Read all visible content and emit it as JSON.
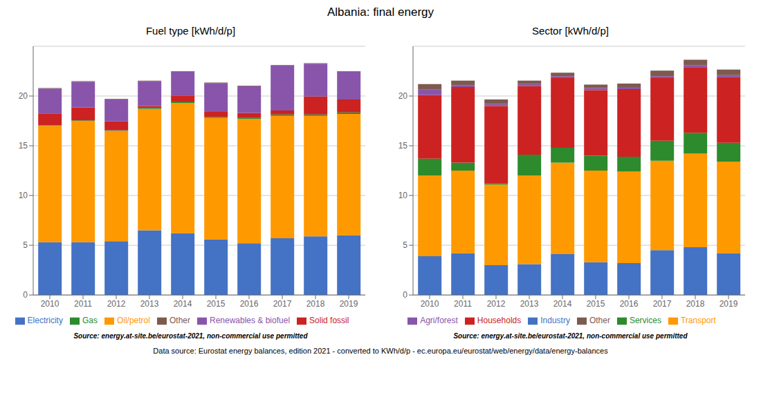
{
  "title": "Albania: final energy",
  "annotations": [
    "Data source: Eurostat energy balances, edition 2021 - converted to KWh/d/p - ec.europa.eu/eurostat/web/energy/data/energy-balances"
  ],
  "chart_data": [
    {
      "type": "bar",
      "stacked": true,
      "title": "Fuel type [kWh/d/p]",
      "categories": [
        "2010",
        "2011",
        "2012",
        "2013",
        "2014",
        "2015",
        "2016",
        "2017",
        "2018",
        "2019"
      ],
      "series": [
        {
          "name": "Electricity",
          "color": "#4472c4",
          "values": [
            5.3,
            5.3,
            5.4,
            6.5,
            6.2,
            5.6,
            5.2,
            5.7,
            5.9,
            6.0
          ]
        },
        {
          "name": "Oil/petrol",
          "color": "#ff9900",
          "values": [
            11.7,
            12.2,
            11.1,
            12.2,
            13.1,
            12.2,
            12.5,
            12.3,
            12.1,
            12.2
          ]
        },
        {
          "name": "Gas",
          "color": "#2d8a2d",
          "values": [
            0.05,
            0.05,
            0.05,
            0.1,
            0.15,
            0.1,
            0.1,
            0.15,
            0.15,
            0.15
          ]
        },
        {
          "name": "Solid fossil",
          "color": "#cc2222",
          "values": [
            1.2,
            1.3,
            0.9,
            0.2,
            0.6,
            0.5,
            0.5,
            0.4,
            1.8,
            1.3
          ]
        },
        {
          "name": "Renewables & biofuel",
          "color": "#8855aa",
          "values": [
            2.5,
            2.6,
            2.2,
            2.5,
            2.4,
            2.9,
            2.7,
            4.5,
            3.3,
            2.8
          ]
        },
        {
          "name": "Other",
          "color": "#7d5a4f",
          "values": [
            0.05,
            0.05,
            0.05,
            0.05,
            0.05,
            0.05,
            0.05,
            0.05,
            0.05,
            0.05
          ]
        }
      ],
      "ylim": [
        0,
        25
      ],
      "yticks": [
        0,
        5,
        10,
        15,
        20
      ],
      "grid": true,
      "legend": "bottom",
      "annotations": [
        "Source: energy.at-site.be/eurostat-2021, non-commercial use permitted"
      ]
    },
    {
      "type": "bar",
      "stacked": true,
      "title": "Sector [kWh/d/p]",
      "categories": [
        "2010",
        "2011",
        "2012",
        "2013",
        "2014",
        "2015",
        "2016",
        "2017",
        "2018",
        "2019"
      ],
      "series": [
        {
          "name": "Industry",
          "color": "#4472c4",
          "values": [
            3.9,
            4.2,
            3.0,
            3.1,
            4.1,
            3.3,
            3.2,
            4.5,
            4.8,
            4.2
          ]
        },
        {
          "name": "Transport",
          "color": "#ff9900",
          "values": [
            8.1,
            8.3,
            8.1,
            8.9,
            9.2,
            9.2,
            9.2,
            9.0,
            9.4,
            9.2
          ]
        },
        {
          "name": "Services",
          "color": "#2d8a2d",
          "values": [
            1.7,
            0.8,
            0.1,
            2.1,
            1.5,
            1.5,
            1.5,
            2.0,
            2.1,
            1.9
          ]
        },
        {
          "name": "Households",
          "color": "#cc2222",
          "values": [
            6.4,
            7.6,
            7.8,
            6.9,
            7.0,
            6.6,
            6.8,
            6.3,
            6.6,
            6.6
          ]
        },
        {
          "name": "Agri/forest",
          "color": "#8855aa",
          "values": [
            0.55,
            0.2,
            0.2,
            0.2,
            0.2,
            0.2,
            0.2,
            0.2,
            0.2,
            0.2
          ]
        },
        {
          "name": "Other",
          "color": "#7d5a4f",
          "values": [
            0.55,
            0.45,
            0.45,
            0.35,
            0.35,
            0.35,
            0.35,
            0.55,
            0.55,
            0.55
          ]
        }
      ],
      "ylim": [
        0,
        25
      ],
      "yticks": [
        0,
        5,
        10,
        15,
        20
      ],
      "grid": true,
      "legend": "bottom",
      "annotations": [
        "Source: energy.at-site.be/eurostat-2021, non-commercial use permitted"
      ]
    }
  ]
}
